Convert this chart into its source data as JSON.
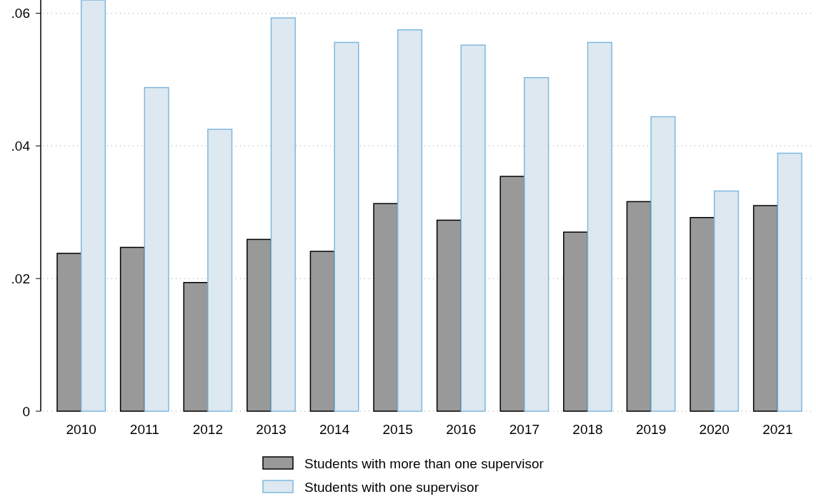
{
  "chart_data": {
    "type": "bar",
    "categories": [
      "2010",
      "2011",
      "2012",
      "2013",
      "2014",
      "2015",
      "2016",
      "2017",
      "2018",
      "2019",
      "2020",
      "2021"
    ],
    "series": [
      {
        "name": "Students with more than one supervisor",
        "color": "#999999",
        "values": [
          0.0238,
          0.0247,
          0.0194,
          0.0259,
          0.0241,
          0.0313,
          0.0288,
          0.0354,
          0.027,
          0.0316,
          0.0292,
          0.031
        ]
      },
      {
        "name": "Students with one supervisor",
        "color": "#dde8f0",
        "values": [
          0.062,
          0.0488,
          0.0425,
          0.0593,
          0.0556,
          0.0575,
          0.0552,
          0.0503,
          0.0556,
          0.0444,
          0.0332,
          0.0389
        ]
      }
    ],
    "ylim": [
      0,
      0.062
    ],
    "yticks": [
      {
        "value": 0,
        "label": "0"
      },
      {
        "value": 0.02,
        "label": ".02"
      },
      {
        "value": 0.04,
        "label": ".04"
      },
      {
        "value": 0.06,
        "label": ".06"
      }
    ],
    "grid": "y",
    "legend": "bottom"
  }
}
